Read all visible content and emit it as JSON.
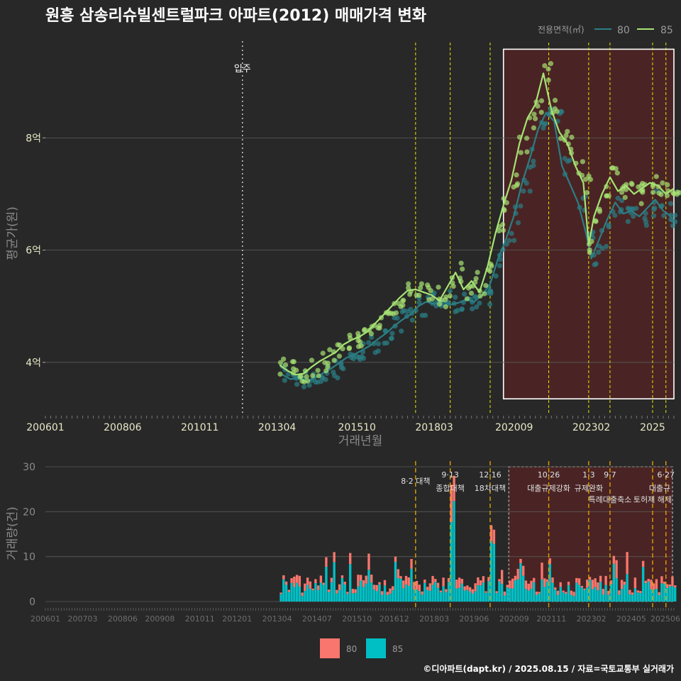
{
  "chart_data": [
    {
      "type": "line",
      "title": "원흥 삼송리슈빌센트럴파크 아파트(2012) 매매가격 변화",
      "xlabel": "거래년월",
      "ylabel": "평균가(원)",
      "x_tick_labels": [
        "200601",
        "200806",
        "201011",
        "201304",
        "201510",
        "201803",
        "202009",
        "202302",
        "2025"
      ],
      "y_ticks": [
        {
          "value": 4,
          "label": "4억"
        },
        {
          "value": 6,
          "label": "6억"
        },
        {
          "value": 8,
          "label": "8억"
        }
      ],
      "ylim": [
        3.1,
        9.8
      ],
      "xlim": [
        "2006-01",
        "2025-09"
      ],
      "grid": true,
      "legend": {
        "title": "전용면적(㎡)",
        "position": "top-right"
      },
      "series": [
        {
          "name": "80",
          "color": "#2a7f86",
          "points": [
            [
              "2013-06",
              3.78
            ],
            [
              "2013-09",
              3.7
            ],
            [
              "2013-12",
              3.72
            ],
            [
              "2014-03",
              3.65
            ],
            [
              "2014-06",
              3.72
            ],
            [
              "2014-09",
              3.8
            ],
            [
              "2014-12",
              3.88
            ],
            [
              "2015-03",
              3.98
            ],
            [
              "2015-06",
              4.08
            ],
            [
              "2015-09",
              4.14
            ],
            [
              "2015-12",
              4.22
            ],
            [
              "2016-03",
              4.3
            ],
            [
              "2016-06",
              4.42
            ],
            [
              "2016-09",
              4.52
            ],
            [
              "2016-12",
              4.65
            ],
            [
              "2017-03",
              4.76
            ],
            [
              "2017-06",
              4.85
            ],
            [
              "2017-09",
              5.0
            ],
            [
              "2017-12",
              5.08
            ],
            [
              "2018-03",
              5.04
            ],
            [
              "2018-06",
              5.1
            ],
            [
              "2018-09",
              5.03
            ],
            [
              "2018-12",
              5.06
            ],
            [
              "2019-03",
              5.12
            ],
            [
              "2019-06",
              5.08
            ],
            [
              "2019-09",
              5.2
            ],
            [
              "2019-12",
              5.4
            ],
            [
              "2020-03",
              5.85
            ],
            [
              "2020-06",
              6.2
            ],
            [
              "2020-09",
              6.62
            ],
            [
              "2020-12",
              7.2
            ],
            [
              "2021-03",
              7.65
            ],
            [
              "2021-06",
              8.15
            ],
            [
              "2021-09",
              8.45
            ],
            [
              "2021-12",
              8.3
            ],
            [
              "2022-03",
              7.5
            ],
            [
              "2022-09",
              6.85
            ],
            [
              "2022-12",
              6.3
            ],
            [
              "2023-02",
              5.85
            ],
            [
              "2023-05",
              6.2
            ],
            [
              "2023-08",
              6.55
            ],
            [
              "2023-11",
              6.85
            ],
            [
              "2024-02",
              6.65
            ],
            [
              "2024-05",
              6.7
            ],
            [
              "2024-08",
              6.6
            ],
            [
              "2024-11",
              6.75
            ],
            [
              "2025-02",
              6.9
            ],
            [
              "2025-05",
              6.7
            ],
            [
              "2025-08",
              6.6
            ]
          ]
        },
        {
          "name": "85",
          "color": "#a6e374",
          "points": [
            [
              "2013-05",
              3.95
            ],
            [
              "2013-08",
              3.85
            ],
            [
              "2013-11",
              3.78
            ],
            [
              "2014-02",
              3.8
            ],
            [
              "2014-05",
              3.92
            ],
            [
              "2014-08",
              4.02
            ],
            [
              "2014-11",
              4.1
            ],
            [
              "2015-02",
              4.18
            ],
            [
              "2015-05",
              4.32
            ],
            [
              "2015-08",
              4.4
            ],
            [
              "2015-11",
              4.46
            ],
            [
              "2016-02",
              4.55
            ],
            [
              "2016-05",
              4.7
            ],
            [
              "2016-08",
              4.85
            ],
            [
              "2016-11",
              5.0
            ],
            [
              "2017-02",
              5.15
            ],
            [
              "2017-05",
              5.28
            ],
            [
              "2017-08",
              5.3
            ],
            [
              "2017-11",
              5.25
            ],
            [
              "2018-02",
              5.2
            ],
            [
              "2018-05",
              5.1
            ],
            [
              "2018-08",
              5.35
            ],
            [
              "2018-11",
              5.6
            ],
            [
              "2019-02",
              5.3
            ],
            [
              "2019-05",
              5.45
            ],
            [
              "2019-08",
              5.25
            ],
            [
              "2019-11",
              5.7
            ],
            [
              "2020-02",
              6.3
            ],
            [
              "2020-05",
              6.8
            ],
            [
              "2020-08",
              7.25
            ],
            [
              "2020-11",
              7.9
            ],
            [
              "2021-02",
              8.35
            ],
            [
              "2021-05",
              8.6
            ],
            [
              "2021-08",
              9.15
            ],
            [
              "2021-11",
              8.5
            ],
            [
              "2022-02",
              8.1
            ],
            [
              "2022-05",
              7.9
            ],
            [
              "2022-08",
              7.5
            ],
            [
              "2022-11",
              7.2
            ],
            [
              "2023-01",
              6.1
            ],
            [
              "2023-03",
              6.6
            ],
            [
              "2023-06",
              7.0
            ],
            [
              "2023-09",
              7.3
            ],
            [
              "2023-12",
              7.05
            ],
            [
              "2024-03",
              7.15
            ],
            [
              "2024-06",
              7.0
            ],
            [
              "2024-09",
              7.1
            ],
            [
              "2024-12",
              7.2
            ],
            [
              "2025-03",
              7.15
            ],
            [
              "2025-06",
              7.0
            ],
            [
              "2025-09",
              7.1
            ]
          ]
        }
      ],
      "annotations": [
        {
          "label": "입주",
          "x": "2012-03",
          "style": "dotted"
        }
      ],
      "event_lines": [
        "2017-08",
        "2018-09",
        "2019-12",
        "2021-10",
        "2023-01",
        "2023-09",
        "2025-01",
        "2025-06"
      ],
      "highlight_box": {
        "from": "2020-05",
        "to": "2025-09",
        "y_from": 3.35,
        "y_to": 9.58
      }
    },
    {
      "type": "bar",
      "ylabel": "거래량(건)",
      "ylim": [
        0,
        30
      ],
      "y_ticks": [
        0,
        10,
        20,
        30
      ],
      "x_tick_labels": [
        "200601",
        "200703",
        "200806",
        "200908",
        "201011",
        "201201",
        "201304",
        "201407",
        "201510",
        "201612",
        "201803",
        "201906",
        "202009",
        "202111",
        "202302",
        "202405",
        "202506"
      ],
      "series": [
        {
          "name": "80",
          "color": "#f8766d"
        },
        {
          "name": "85",
          "color": "#00bfc4"
        }
      ],
      "events": [
        {
          "date": "2017-08",
          "label1": "8·2 대책",
          "label2": ""
        },
        {
          "date": "2018-09",
          "label1": "9·13",
          "label2": "종합대책"
        },
        {
          "date": "2019-12",
          "label1": "12·16",
          "label2": "18차대책"
        },
        {
          "date": "2021-10",
          "label1": "10·26",
          "label2": "대출규제강화"
        },
        {
          "date": "2023-01",
          "label1": "1·3",
          "label2": "규제완화"
        },
        {
          "date": "2023-09",
          "label1": "9·7",
          "label2": "특례대출축소"
        },
        {
          "date": "2025-01",
          "label1": "",
          "label2": "토허제 해제"
        },
        {
          "date": "2025-06",
          "label1": "6·27",
          "label2": "대출규"
        }
      ]
    }
  ],
  "legend_bottom": [
    "80",
    "85"
  ],
  "footer": "©디아파트(dapt.kr) / 2025.08.15 / 자료=국토교통부 실거래가"
}
